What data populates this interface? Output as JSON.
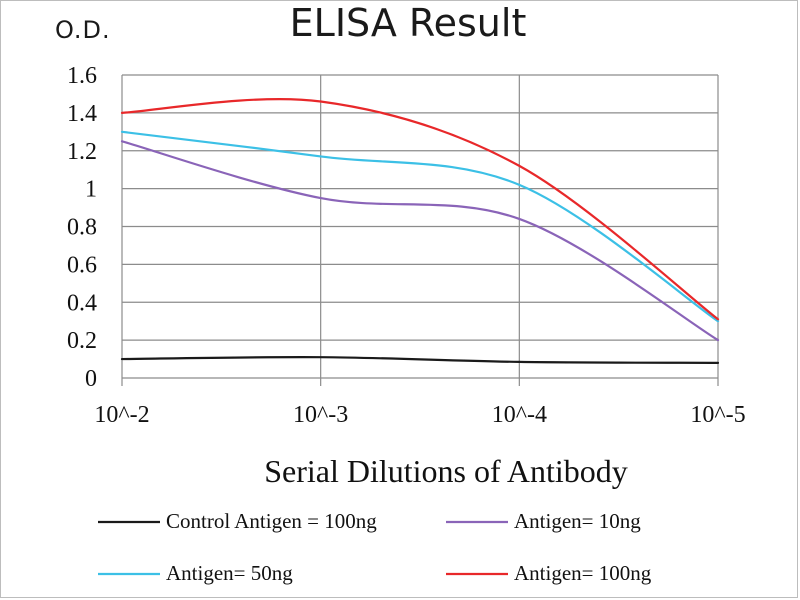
{
  "chart_data": {
    "type": "line",
    "title": "ELISA Result",
    "ylabel": "O.D.",
    "xlabel": "Serial Dilutions  of Antibody",
    "categories": [
      "10^-2",
      "10^-3",
      "10^-4",
      "10^-5"
    ],
    "ylim": [
      0,
      1.6
    ],
    "yticks": [
      "0",
      "0.2",
      "0.4",
      "0.6",
      "0.8",
      "1",
      "1.2",
      "1.4",
      "1.6"
    ],
    "grid": true,
    "legend_position": "bottom",
    "series": [
      {
        "name": "Control Antigen = 100ng",
        "color": "#1a1a1a",
        "values": [
          0.1,
          0.11,
          0.085,
          0.08
        ]
      },
      {
        "name": "Antigen= 10ng",
        "color": "#8a64b8",
        "values": [
          1.25,
          0.95,
          0.84,
          0.2
        ]
      },
      {
        "name": "Antigen= 50ng",
        "color": "#3cc0e6",
        "values": [
          1.3,
          1.17,
          1.02,
          0.3
        ]
      },
      {
        "name": "Antigen= 100ng",
        "color": "#e8282a",
        "values": [
          1.4,
          1.46,
          1.12,
          0.31
        ]
      }
    ]
  }
}
